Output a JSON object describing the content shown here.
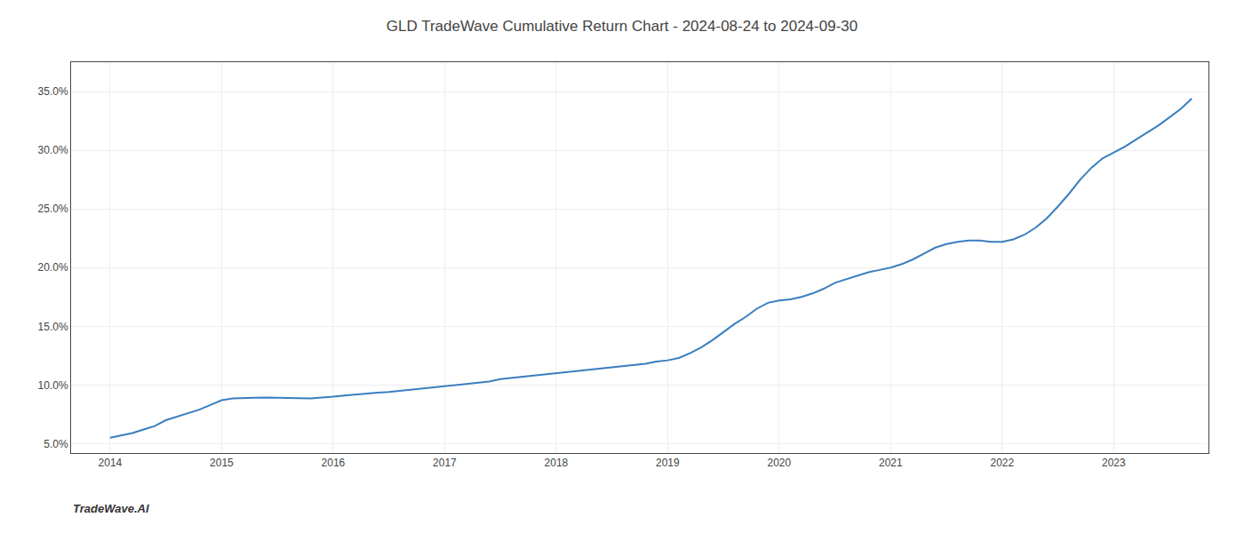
{
  "chart_data": {
    "type": "line",
    "title": "GLD TradeWave Cumulative Return Chart - 2024-08-24 to 2024-09-30",
    "annotations": [
      "TradeWave.AI"
    ],
    "x": [
      2014.0,
      2014.1,
      2014.2,
      2014.3,
      2014.4,
      2014.5,
      2014.6,
      2014.7,
      2014.8,
      2014.9,
      2015.0,
      2015.1,
      2015.2,
      2015.3,
      2015.4,
      2015.5,
      2015.6,
      2015.7,
      2015.8,
      2015.9,
      2016.0,
      2016.1,
      2016.2,
      2016.3,
      2016.4,
      2016.5,
      2016.6,
      2016.7,
      2016.8,
      2016.9,
      2017.0,
      2017.1,
      2017.2,
      2017.3,
      2017.4,
      2017.5,
      2017.6,
      2017.7,
      2017.8,
      2017.9,
      2018.0,
      2018.1,
      2018.2,
      2018.3,
      2018.4,
      2018.5,
      2018.6,
      2018.7,
      2018.8,
      2018.9,
      2019.0,
      2019.1,
      2019.2,
      2019.3,
      2019.4,
      2019.5,
      2019.6,
      2019.7,
      2019.8,
      2019.9,
      2020.0,
      2020.1,
      2020.2,
      2020.3,
      2020.4,
      2020.5,
      2020.6,
      2020.7,
      2020.8,
      2020.9,
      2021.0,
      2021.1,
      2021.2,
      2021.3,
      2021.4,
      2021.5,
      2021.6,
      2021.7,
      2021.8,
      2021.9,
      2022.0,
      2022.1,
      2022.2,
      2022.3,
      2022.4,
      2022.5,
      2022.6,
      2022.7,
      2022.8,
      2022.9,
      2023.0,
      2023.1,
      2023.2,
      2023.3,
      2023.4,
      2023.5,
      2023.6,
      2023.7
    ],
    "values": [
      5.5,
      5.7,
      5.9,
      6.2,
      6.5,
      7.0,
      7.3,
      7.6,
      7.9,
      8.3,
      8.7,
      8.85,
      8.9,
      8.92,
      8.93,
      8.93,
      8.9,
      8.88,
      8.85,
      8.9,
      9.0,
      9.1,
      9.2,
      9.3,
      9.35,
      9.4,
      9.5,
      9.6,
      9.7,
      9.8,
      9.9,
      10.0,
      10.1,
      10.2,
      10.3,
      10.5,
      10.6,
      10.7,
      10.8,
      10.9,
      11.0,
      11.1,
      11.2,
      11.3,
      11.4,
      11.5,
      11.6,
      11.7,
      11.8,
      12.0,
      12.1,
      12.3,
      12.7,
      13.2,
      13.8,
      14.5,
      15.2,
      15.8,
      16.5,
      17.0,
      17.2,
      17.3,
      17.5,
      17.8,
      18.2,
      18.7,
      19.0,
      19.3,
      19.6,
      19.8,
      20.0,
      20.3,
      20.7,
      21.2,
      21.7,
      22.0,
      22.2,
      22.3,
      22.3,
      22.2,
      22.2,
      22.4,
      22.8,
      23.4,
      24.2,
      25.2,
      26.3,
      27.5,
      28.5,
      29.3,
      29.8,
      30.3,
      30.9,
      31.5,
      32.1,
      32.8,
      33.5,
      34.4
    ],
    "color": "#3a7ebf",
    "xlim": [
      2013.65,
      2023.85
    ],
    "xticks": [
      2014,
      2015,
      2016,
      2017,
      2018,
      2019,
      2020,
      2021,
      2022,
      2023
    ],
    "ylim": [
      4.2,
      37.5
    ],
    "yticks": [
      {
        "value": 5.0,
        "label": "5.0%"
      },
      {
        "value": 10.0,
        "label": "10.0%"
      },
      {
        "value": 15.0,
        "label": "15.0%"
      },
      {
        "value": 20.0,
        "label": "20.0%"
      },
      {
        "value": 25.0,
        "label": "25.0%"
      },
      {
        "value": 30.0,
        "label": "30.0%"
      },
      {
        "value": 35.0,
        "label": "35.0%"
      }
    ],
    "grid": true
  }
}
